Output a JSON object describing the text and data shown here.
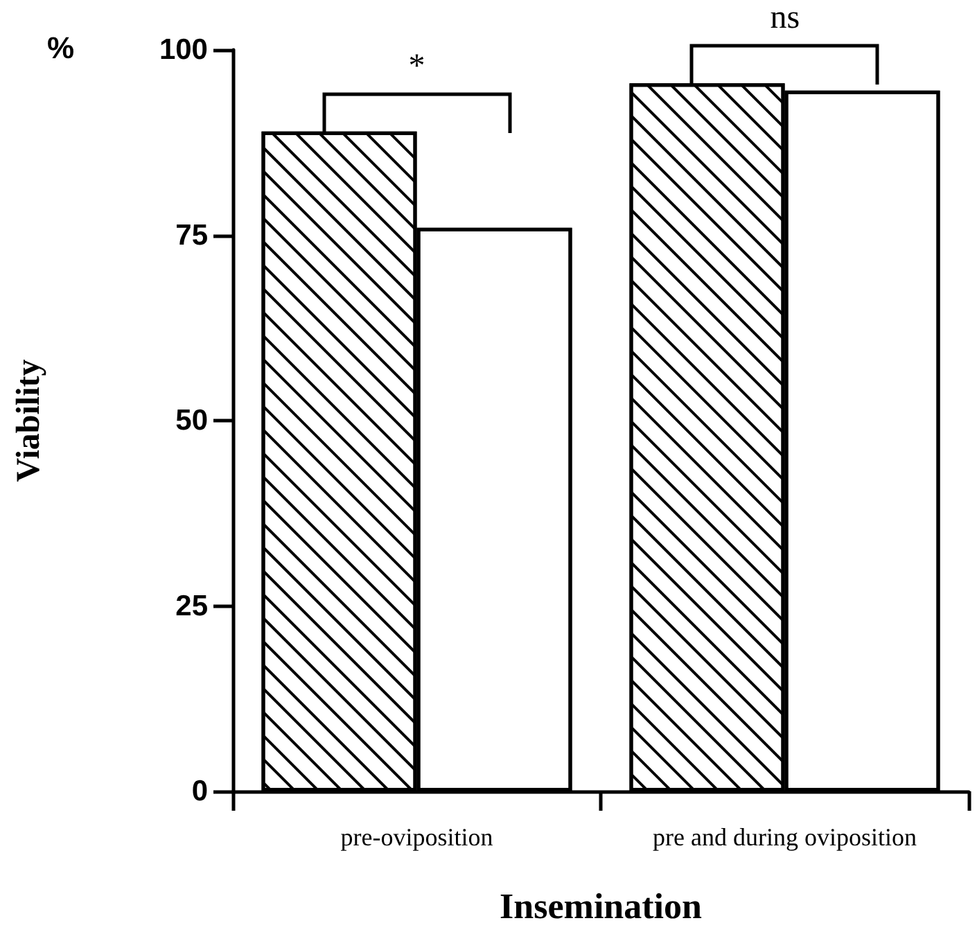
{
  "chart_data": {
    "type": "bar",
    "xlabel": "Insemination",
    "ylabel": "Viability",
    "categories": [
      "pre-oviposition",
      "pre and during oviposition"
    ],
    "series": [
      {
        "color": "#000000",
        "values": [
          89,
          95.5
        ]
      },
      {
        "color": "#ffffff",
        "values": [
          76,
          94.5
        ]
      }
    ],
    "ylim": [
      0,
      100
    ],
    "yticks": [
      0,
      25,
      50,
      75,
      100
    ],
    "grid": false,
    "annotations": [
      "*",
      "ns",
      "%"
    ]
  }
}
